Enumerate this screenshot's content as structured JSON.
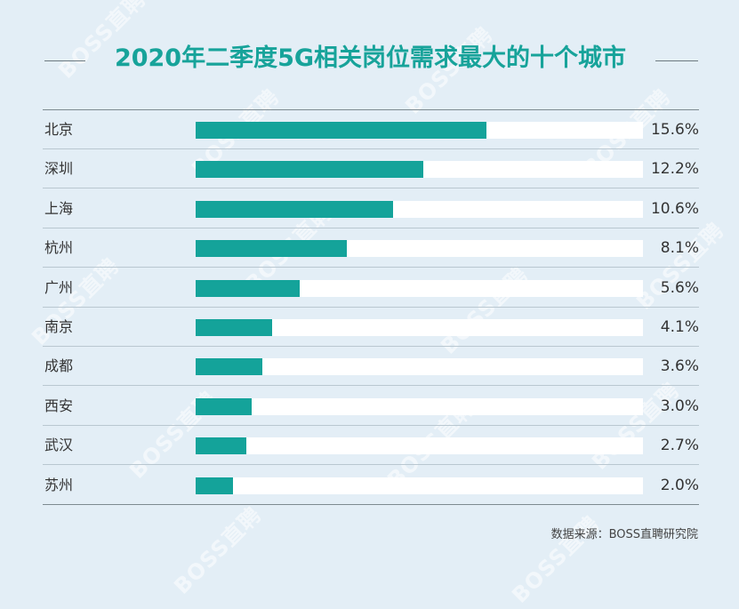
{
  "watermark": "BOSS直聘",
  "chart_data": {
    "type": "bar",
    "orientation": "horizontal",
    "title": "2020年二季度5G相关岗位需求最大的十个城市",
    "categories": [
      "北京",
      "深圳",
      "上海",
      "杭州",
      "广州",
      "南京",
      "成都",
      "西安",
      "武汉",
      "苏州"
    ],
    "values": [
      15.6,
      12.2,
      10.6,
      8.1,
      5.6,
      4.1,
      3.6,
      3.0,
      2.7,
      2.0
    ],
    "labels": [
      "15.6%",
      "12.2%",
      "10.6%",
      "8.1%",
      "5.6%",
      "4.1%",
      "3.6%",
      "3.0%",
      "2.7%",
      "2.0%"
    ],
    "xlim": [
      0,
      24
    ],
    "unit": "%",
    "bar_color": "#14a39a",
    "track_color": "#ffffff",
    "title_color": "#17a39a",
    "source": "数据来源：BOSS直聘研究院"
  }
}
